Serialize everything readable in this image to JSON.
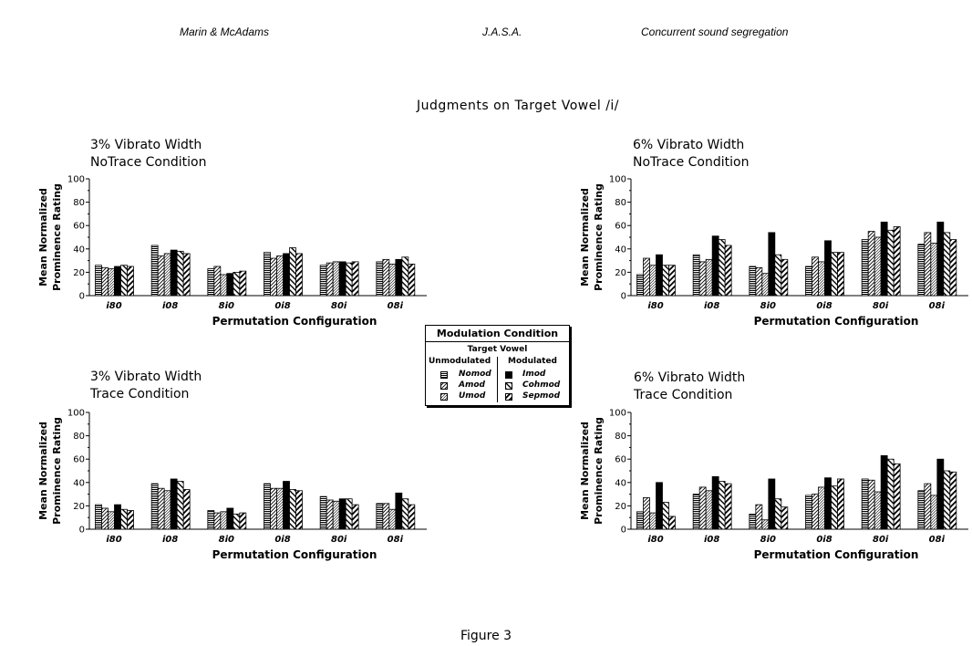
{
  "header": {
    "authors": "Marin & McAdams",
    "journal": "J.A.S.A.",
    "topic": "Concurrent sound segregation"
  },
  "figure_title": "Judgments on Target Vowel /i/",
  "figure_label": "Figure 3",
  "legend": {
    "title": "Modulation Condition",
    "subtitle": "Target Vowel",
    "group_unmodulated": "Unmodulated",
    "group_modulated": "Modulated",
    "unmodulated_items": [
      "Nomod",
      "Amod",
      "Umod"
    ],
    "modulated_items": [
      "Imod",
      "Cohmod",
      "Sepmod"
    ]
  },
  "chart_data": [
    {
      "type": "bar",
      "title_line1": "3% Vibrato Width",
      "title_line2": "NoTrace Condition",
      "xlabel": "Permutation Configuration",
      "ylabel_line1": "Mean Normalized",
      "ylabel_line2": "Prominence Rating",
      "ylim": [
        0,
        100
      ],
      "yticks": [
        0,
        20,
        40,
        60,
        80,
        100
      ],
      "categories": [
        "i80",
        "i08",
        "8i0",
        "0i8",
        "80i",
        "08i"
      ],
      "series": [
        {
          "name": "Nomod",
          "values": [
            26,
            43,
            23,
            37,
            26,
            29
          ]
        },
        {
          "name": "Amod",
          "values": [
            24,
            34,
            25,
            32,
            28,
            31
          ]
        },
        {
          "name": "Umod",
          "values": [
            23,
            36,
            18,
            34,
            29,
            27
          ]
        },
        {
          "name": "Imod",
          "values": [
            25,
            39,
            19,
            36,
            29,
            31
          ]
        },
        {
          "name": "Cohmod",
          "values": [
            26,
            38,
            20,
            41,
            28,
            33
          ]
        },
        {
          "name": "Sepmod",
          "values": [
            25,
            36,
            21,
            36,
            29,
            27
          ]
        }
      ]
    },
    {
      "type": "bar",
      "title_line1": "6% Vibrato Width",
      "title_line2": "NoTrace Condition",
      "xlabel": "Permutation Configuration",
      "ylabel_line1": "Mean Normalized",
      "ylabel_line2": "Prominence Rating",
      "ylim": [
        0,
        100
      ],
      "yticks": [
        0,
        20,
        40,
        60,
        80,
        100
      ],
      "categories": [
        "i80",
        "i08",
        "8i0",
        "0i8",
        "80i",
        "08i"
      ],
      "series": [
        {
          "name": "Nomod",
          "values": [
            18,
            35,
            25,
            25,
            48,
            44
          ]
        },
        {
          "name": "Amod",
          "values": [
            32,
            29,
            24,
            33,
            55,
            54
          ]
        },
        {
          "name": "Umod",
          "values": [
            26,
            31,
            19,
            29,
            50,
            45
          ]
        },
        {
          "name": "Imod",
          "values": [
            35,
            51,
            54,
            47,
            63,
            63
          ]
        },
        {
          "name": "Cohmod",
          "values": [
            26,
            48,
            35,
            37,
            56,
            54
          ]
        },
        {
          "name": "Sepmod",
          "values": [
            26,
            43,
            31,
            37,
            59,
            48
          ]
        }
      ]
    },
    {
      "type": "bar",
      "title_line1": "3% Vibrato Width",
      "title_line2": "Trace Condition",
      "xlabel": "Permutation Configuration",
      "ylabel_line1": "Mean Normalized",
      "ylabel_line2": "Prominence Rating",
      "ylim": [
        0,
        100
      ],
      "yticks": [
        0,
        20,
        40,
        60,
        80,
        100
      ],
      "categories": [
        "i80",
        "i08",
        "8i0",
        "0i8",
        "80i",
        "08i"
      ],
      "series": [
        {
          "name": "Nomod",
          "values": [
            21,
            39,
            16,
            39,
            28,
            22
          ]
        },
        {
          "name": "Amod",
          "values": [
            18,
            35,
            14,
            35,
            25,
            22
          ]
        },
        {
          "name": "Umod",
          "values": [
            15,
            33,
            15,
            35,
            24,
            17
          ]
        },
        {
          "name": "Imod",
          "values": [
            21,
            43,
            18,
            41,
            26,
            31
          ]
        },
        {
          "name": "Cohmod",
          "values": [
            17,
            41,
            13,
            34,
            26,
            26
          ]
        },
        {
          "name": "Sepmod",
          "values": [
            16,
            34,
            14,
            33,
            21,
            21
          ]
        }
      ]
    },
    {
      "type": "bar",
      "title_line1": "6% Vibrato Width",
      "title_line2": "Trace Condition",
      "xlabel": "Permutation Configuration",
      "ylabel_line1": "Mean Normalized",
      "ylabel_line2": "Prominence Rating",
      "ylim": [
        0,
        100
      ],
      "yticks": [
        0,
        20,
        40,
        60,
        80,
        100
      ],
      "categories": [
        "i80",
        "i08",
        "8i0",
        "0i8",
        "80i",
        "08i"
      ],
      "series": [
        {
          "name": "Nomod",
          "values": [
            15,
            30,
            13,
            29,
            43,
            33
          ]
        },
        {
          "name": "Amod",
          "values": [
            27,
            36,
            21,
            30,
            42,
            39
          ]
        },
        {
          "name": "Umod",
          "values": [
            14,
            33,
            8,
            36,
            32,
            29
          ]
        },
        {
          "name": "Imod",
          "values": [
            40,
            45,
            43,
            44,
            63,
            60
          ]
        },
        {
          "name": "Cohmod",
          "values": [
            23,
            41,
            26,
            37,
            60,
            50
          ]
        },
        {
          "name": "Sepmod",
          "values": [
            11,
            39,
            19,
            43,
            56,
            49
          ]
        }
      ]
    }
  ]
}
